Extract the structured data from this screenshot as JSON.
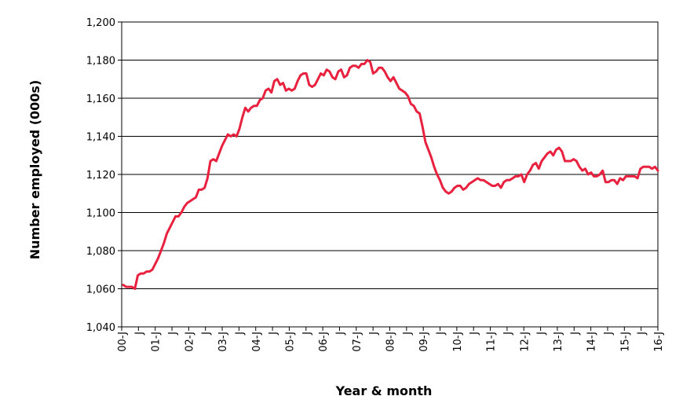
{
  "chart_data": {
    "type": "line",
    "title": "",
    "xlabel": "Year & month",
    "ylabel": "Number employed (000s)",
    "ylim": [
      1040,
      1200
    ],
    "yticks": [
      1040,
      1060,
      1080,
      1100,
      1120,
      1140,
      1160,
      1180,
      1200
    ],
    "ytick_labels": [
      "1,040",
      "1,060",
      "1,080",
      "1,100",
      "1,120",
      "1,140",
      "1,160",
      "1,180",
      "1,200"
    ],
    "xtick_labels": [
      "00-J",
      "J",
      "01-J",
      "J",
      "02-J",
      "J",
      "03-J",
      "J",
      "04-J",
      "J",
      "05-J",
      "J",
      "06-J",
      "J",
      "07-J",
      "J",
      "08-J",
      "J",
      "09-J",
      "J",
      "10-J",
      "J",
      "11-J",
      "J",
      "12-J",
      "J",
      "13-J",
      "J",
      "14-J",
      "J",
      "15-J",
      "J",
      "16-J"
    ],
    "grid": true,
    "line_color": "#e8213f",
    "series": [
      {
        "values": [
          1062,
          1061,
          1061,
          1061,
          1060,
          1067,
          1068,
          1068,
          1069,
          1069,
          1070,
          1073,
          1076,
          1080,
          1084,
          1089,
          1092,
          1095,
          1098,
          1098,
          1100,
          1103,
          1105,
          1106,
          1107,
          1108,
          1112,
          1112,
          1113,
          1118,
          1127,
          1128,
          1127,
          1131,
          1135,
          1138,
          1141,
          1140,
          1141,
          1140,
          1144,
          1150,
          1155,
          1153,
          1155,
          1156,
          1156,
          1159,
          1160,
          1164,
          1165,
          1163,
          1169,
          1170,
          1167,
          1168,
          1164,
          1165,
          1164,
          1165,
          1169,
          1172,
          1173,
          1173,
          1167,
          1166,
          1167,
          1170,
          1173,
          1172,
          1175,
          1174,
          1171,
          1170,
          1174,
          1175,
          1171,
          1172,
          1176,
          1177,
          1177,
          1176,
          1178,
          1178,
          1180,
          1179,
          1173,
          1174,
          1176,
          1176,
          1174,
          1171,
          1169,
          1171,
          1168,
          1165,
          1164,
          1163,
          1161,
          1157,
          1156,
          1153,
          1152,
          1145,
          1137,
          1133,
          1129,
          1124,
          1120,
          1117,
          1113,
          1111,
          1110,
          1111,
          1113,
          1114,
          1114,
          1112,
          1113,
          1115,
          1116,
          1117,
          1118,
          1117,
          1117,
          1116,
          1115,
          1114,
          1114,
          1115,
          1113,
          1116,
          1117,
          1117,
          1118,
          1119,
          1119,
          1120,
          1116,
          1120,
          1122,
          1125,
          1126,
          1123,
          1127,
          1129,
          1131,
          1132,
          1130,
          1133,
          1134,
          1132,
          1127,
          1127,
          1127,
          1128,
          1127,
          1124,
          1122,
          1123,
          1120,
          1121,
          1119,
          1119,
          1120,
          1122,
          1116,
          1116,
          1117,
          1117,
          1115,
          1118,
          1117,
          1119,
          1119,
          1119,
          1119,
          1118,
          1123,
          1124,
          1124,
          1124,
          1123,
          1124,
          1122
        ]
      }
    ]
  }
}
